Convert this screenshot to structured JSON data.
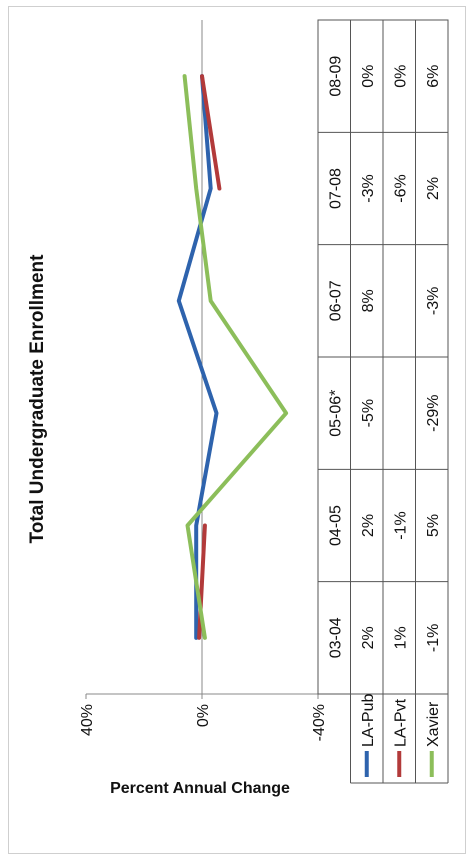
{
  "chart_data": {
    "type": "line",
    "title": "Total Undergraduate Enrollment",
    "ylabel": "Percent Annual Change",
    "xlabel": "",
    "ylim": [
      -40,
      40
    ],
    "yticks": [
      "40%",
      "0%",
      "-40%"
    ],
    "categories": [
      "03-04",
      "04-05",
      "05-06*",
      "06-07",
      "07-08",
      "08-09"
    ],
    "series": [
      {
        "name": "LA-Pub",
        "color": "#2e63ad",
        "values": [
          2,
          2,
          -5,
          8,
          -3,
          0
        ],
        "labels": [
          "2%",
          "2%",
          "-5%",
          "8%",
          "-3%",
          "0%"
        ]
      },
      {
        "name": "LA-Pvt",
        "color": "#b23a3a",
        "values": [
          1,
          -1,
          null,
          null,
          -6,
          0
        ],
        "labels": [
          "1%",
          "-1%",
          "",
          "",
          "-6%",
          "0%"
        ]
      },
      {
        "name": "Xavier",
        "color": "#8cbe5a",
        "values": [
          -1,
          5,
          -29,
          -3,
          2,
          6
        ],
        "labels": [
          "-1%",
          "5%",
          "-29%",
          "-3%",
          "2%",
          "6%"
        ]
      }
    ],
    "grid": false,
    "legend": "table-left"
  }
}
